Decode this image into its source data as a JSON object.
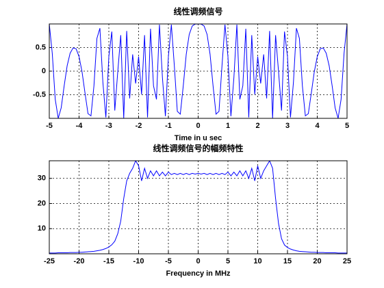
{
  "chart_data": [
    {
      "type": "line",
      "title": "线性调频信号",
      "xlabel": "Time in u sec",
      "color": "#0000ff",
      "grid": true,
      "x": [
        -5,
        -4.9,
        -4.8,
        -4.7,
        -4.6,
        -4.5,
        -4.4,
        -4.3,
        -4.2,
        -4.1,
        -4,
        -3.9,
        -3.8,
        -3.7,
        -3.6,
        -3.5,
        -3.4,
        -3.3,
        -3.2,
        -3.1,
        -3,
        -2.9,
        -2.8,
        -2.7,
        -2.6,
        -2.5,
        -2.4,
        -2.3,
        -2.2,
        -2.1,
        -2,
        -1.9,
        -1.8,
        -1.7,
        -1.6,
        -1.5,
        -1.4,
        -1.3,
        -1.2,
        -1.1,
        -1,
        -0.9,
        -0.8,
        -0.7,
        -0.6,
        -0.5,
        -0.4,
        -0.3,
        -0.2,
        -0.1,
        0,
        0.1,
        0.2,
        0.3,
        0.4,
        0.5,
        0.6,
        0.7,
        0.8,
        0.9,
        1,
        1.1,
        1.2,
        1.3,
        1.4,
        1.5,
        1.6,
        1.7,
        1.8,
        1.9,
        2,
        2.1,
        2.2,
        2.3,
        2.4,
        2.5,
        2.6,
        2.7,
        2.8,
        2.9,
        3,
        3.1,
        3.2,
        3.3,
        3.4,
        3.5,
        3.6,
        3.7,
        3.8,
        3.9,
        4,
        4.1,
        4.2,
        4.3,
        4.4,
        4.5,
        4.6,
        4.7,
        4.8,
        4.9,
        5
      ],
      "values": [
        1,
        0.378,
        -0.598,
        -0.999,
        -0.777,
        -0.31,
        0.114,
        0.381,
        0.492,
        0.474,
        0.309,
        -0.014,
        -0.465,
        -0.9,
        -0.947,
        -0.309,
        0.694,
        0.91,
        -0.237,
        -0.98,
        0.309,
        0.838,
        -0.835,
        -0.012,
        0.762,
        -1,
        0.851,
        -0.578,
        0.354,
        -0.261,
        0.309,
        -0.493,
        0.762,
        -0.98,
        0.899,
        -0.309,
        -0.598,
        0.985,
        -0.138,
        -0.955,
        0.309,
        0.985,
        0.112,
        -0.852,
        -0.911,
        -0.309,
        0.357,
        0.778,
        0.955,
        0.997,
        1,
        0.997,
        0.955,
        0.778,
        0.357,
        -0.309,
        -0.911,
        -0.852,
        0.112,
        0.985,
        0.309,
        -0.955,
        -0.138,
        0.985,
        -0.598,
        -0.309,
        0.899,
        -0.98,
        0.762,
        -0.493,
        0.309,
        -0.261,
        0.354,
        -0.578,
        0.851,
        -1,
        0.762,
        -0.012,
        -0.835,
        0.838,
        0.309,
        -0.98,
        -0.237,
        0.91,
        0.694,
        -0.309,
        -0.947,
        -0.9,
        -0.465,
        -0.014,
        0.309,
        0.474,
        0.492,
        0.381,
        0.114,
        -0.31,
        -0.777,
        -0.999,
        -0.598,
        0.378,
        1
      ],
      "xlim": [
        -5,
        5
      ],
      "xticks": [
        -5,
        -4,
        -3,
        -2,
        -1,
        0,
        1,
        2,
        3,
        4,
        5
      ],
      "ylim": [
        -1,
        1
      ],
      "yticks": [
        -0.5,
        0,
        0.5
      ]
    },
    {
      "type": "line",
      "title": "线性调频信号的幅频特性",
      "xlabel": "Frequency in MHz",
      "color": "#0000ff",
      "grid": true,
      "x": [
        -25,
        -24.5,
        -24,
        -23.5,
        -23,
        -22.5,
        -22,
        -21.5,
        -21,
        -20.5,
        -20,
        -19.5,
        -19,
        -18.5,
        -18,
        -17.5,
        -17,
        -16.5,
        -16,
        -15.5,
        -15,
        -14.5,
        -14,
        -13.5,
        -13,
        -12.5,
        -12,
        -11.5,
        -11,
        -10.5,
        -10,
        -9.5,
        -9,
        -8.5,
        -8,
        -7.5,
        -7,
        -6.5,
        -6,
        -5.5,
        -5,
        -4.5,
        -4,
        -3.5,
        -3,
        -2.5,
        -2,
        -1.5,
        -1,
        -0.5,
        0,
        0.5,
        1,
        1.5,
        2,
        2.5,
        3,
        3.5,
        4,
        4.5,
        5,
        5.5,
        6,
        6.5,
        7,
        7.5,
        8,
        8.5,
        9,
        9.5,
        10,
        10.5,
        11,
        11.5,
        12,
        12.5,
        13,
        13.5,
        14,
        14.5,
        15,
        15.5,
        16,
        16.5,
        17,
        17.5,
        18,
        18.5,
        19,
        19.5,
        20,
        20.5,
        21,
        21.5,
        22,
        22.5,
        23,
        23.5,
        24,
        24.5,
        25
      ],
      "values": [
        0.3,
        0.3,
        0.3,
        0.4,
        0.4,
        0.4,
        0.4,
        0.5,
        0.5,
        0.5,
        0.6,
        0.6,
        0.7,
        0.8,
        0.9,
        1.0,
        1.2,
        1.4,
        1.7,
        2.1,
        2.7,
        3.6,
        5,
        8,
        13,
        22,
        29,
        32,
        34,
        37,
        35,
        29,
        34,
        30,
        33,
        31,
        33,
        31,
        32.5,
        31,
        32.5,
        31.5,
        32,
        31.5,
        32,
        31.5,
        32,
        31.5,
        32,
        31.7,
        32,
        31.7,
        32,
        31.5,
        32,
        31.5,
        32,
        31.5,
        32,
        31.5,
        32.5,
        31,
        32.5,
        31,
        33,
        31,
        33,
        30,
        34,
        29,
        35,
        30,
        33,
        35,
        37,
        34,
        22,
        12,
        6,
        3.5,
        2.5,
        1.9,
        1.5,
        1.2,
        1.0,
        0.9,
        0.8,
        0.7,
        0.6,
        0.6,
        0.5,
        0.5,
        0.5,
        0.4,
        0.4,
        0.4,
        0.4,
        0.3,
        0.3,
        0.3,
        0.3
      ],
      "xlim": [
        -25,
        25
      ],
      "xticks": [
        -25,
        -20,
        -15,
        -10,
        -5,
        0,
        5,
        10,
        15,
        20,
        25
      ],
      "ylim": [
        0,
        37
      ],
      "yticks": [
        10,
        20,
        30
      ]
    }
  ]
}
